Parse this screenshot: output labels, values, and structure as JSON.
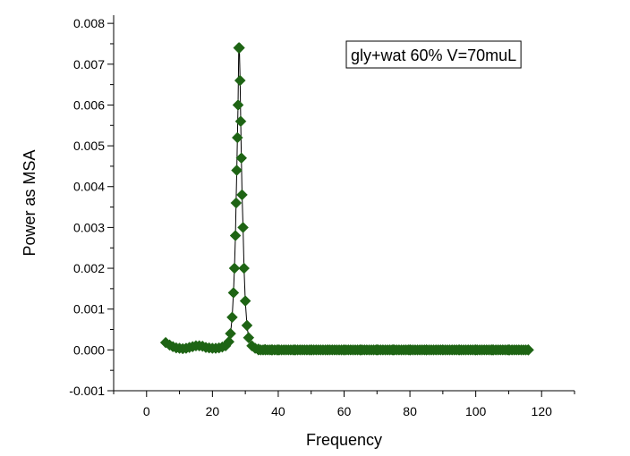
{
  "chart_data": {
    "type": "scatter",
    "title": "",
    "xlabel": "Frequency",
    "ylabel": "Power as MSA",
    "xlim": [
      -10,
      130
    ],
    "ylim": [
      -0.001,
      0.0082
    ],
    "xticks": [
      0,
      20,
      40,
      60,
      80,
      100,
      120
    ],
    "xtick_labels": [
      "0",
      "20",
      "40",
      "60",
      "80",
      "100",
      "120"
    ],
    "yticks": [
      -0.001,
      0.0,
      0.001,
      0.002,
      0.003,
      0.004,
      0.005,
      0.006,
      0.007,
      0.008
    ],
    "ytick_labels": [
      "-0.001",
      "0.000",
      "0.001",
      "0.002",
      "0.003",
      "0.004",
      "0.005",
      "0.006",
      "0.007",
      "0.008"
    ],
    "grid": false,
    "legend_position": "top-right",
    "marker": "diamond",
    "marker_color": "#1e6414",
    "line_color": "#000000",
    "series": [
      {
        "name": "gly+wat 60% V=70muL",
        "x": [
          5.8,
          7,
          8,
          9,
          10,
          11,
          12,
          13,
          14,
          15,
          16,
          17,
          18,
          19,
          20,
          21,
          22,
          23,
          24,
          25,
          25.5,
          26,
          26.4,
          26.7,
          27,
          27.2,
          27.4,
          27.6,
          27.8,
          28.0,
          28.2,
          28.4,
          28.6,
          28.8,
          29.0,
          29.3,
          29.6,
          30,
          30.5,
          31,
          32,
          33,
          34,
          36,
          38,
          40,
          45,
          50,
          55,
          60,
          65,
          70,
          75,
          80,
          85,
          90,
          95,
          100,
          105,
          110,
          116
        ],
        "y": [
          0.00018,
          0.00012,
          8e-05,
          5e-05,
          4e-05,
          3e-05,
          4e-05,
          6e-05,
          8e-05,
          0.0001,
          0.0001,
          9e-05,
          6e-05,
          5e-05,
          4e-05,
          4e-05,
          5e-05,
          7e-05,
          0.0001,
          0.0002,
          0.0004,
          0.0008,
          0.0014,
          0.002,
          0.0028,
          0.0036,
          0.0044,
          0.0052,
          0.006,
          0.0074,
          0.0074,
          0.0066,
          0.0056,
          0.0047,
          0.0038,
          0.003,
          0.002,
          0.0012,
          0.0006,
          0.0003,
          0.0001,
          4e-05,
          2e-05,
          1e-05,
          0.0,
          0.0,
          0.0,
          0.0,
          0.0,
          0.0,
          0.0,
          0.0,
          0.0,
          0.0,
          0.0,
          0.0,
          0.0,
          0.0,
          0.0,
          0.0,
          0.0
        ]
      }
    ]
  }
}
